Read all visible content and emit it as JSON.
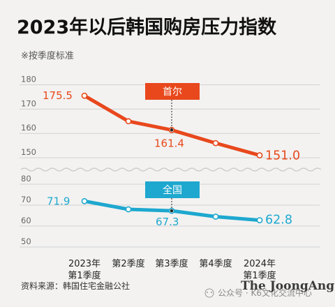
{
  "title": "2023年以后韩国购房压力指数",
  "subtitle": "※按季度标准",
  "source": "资料来源：韩国住宅金融公社",
  "watermark": "公众号 · K6文化交流中心",
  "brand": "The JoongAng",
  "chart_data": [
    {
      "type": "line",
      "categories": [
        [
          "2023年",
          "第1季度"
        ],
        [
          "第2季度"
        ],
        [
          "第3季度"
        ],
        [
          "第4季度"
        ],
        [
          "2024年",
          "第1季度"
        ]
      ],
      "series": [
        {
          "name": "首尔",
          "values": [
            175.5,
            165.0,
            161.4,
            156.0,
            151.0
          ],
          "color": "#e8481c"
        }
      ],
      "data_labels": [
        {
          "index": 0,
          "text": "175.5"
        },
        {
          "index": 2,
          "text": "161.4"
        },
        {
          "index": 4,
          "text": "151.0"
        }
      ],
      "yticks": [
        "180",
        "170",
        "160",
        "150"
      ],
      "ylim": [
        145,
        180
      ],
      "grid": true,
      "legend": "top-right"
    },
    {
      "type": "line",
      "categories": [
        [
          "2023年",
          "第1季度"
        ],
        [
          "第2季度"
        ],
        [
          "第3季度"
        ],
        [
          "第4季度"
        ],
        [
          "2024年",
          "第1季度"
        ]
      ],
      "series": [
        {
          "name": "全国",
          "values": [
            71.9,
            68.0,
            67.3,
            64.5,
            62.8
          ],
          "color": "#1ea8cf"
        }
      ],
      "data_labels": [
        {
          "index": 0,
          "text": "71.9"
        },
        {
          "index": 2,
          "text": "67.3"
        },
        {
          "index": 4,
          "text": "62.8"
        }
      ],
      "yticks": [
        "80",
        "70",
        "60",
        "50"
      ],
      "ylim": [
        50,
        80
      ],
      "grid": true,
      "legend": "top-right"
    }
  ]
}
